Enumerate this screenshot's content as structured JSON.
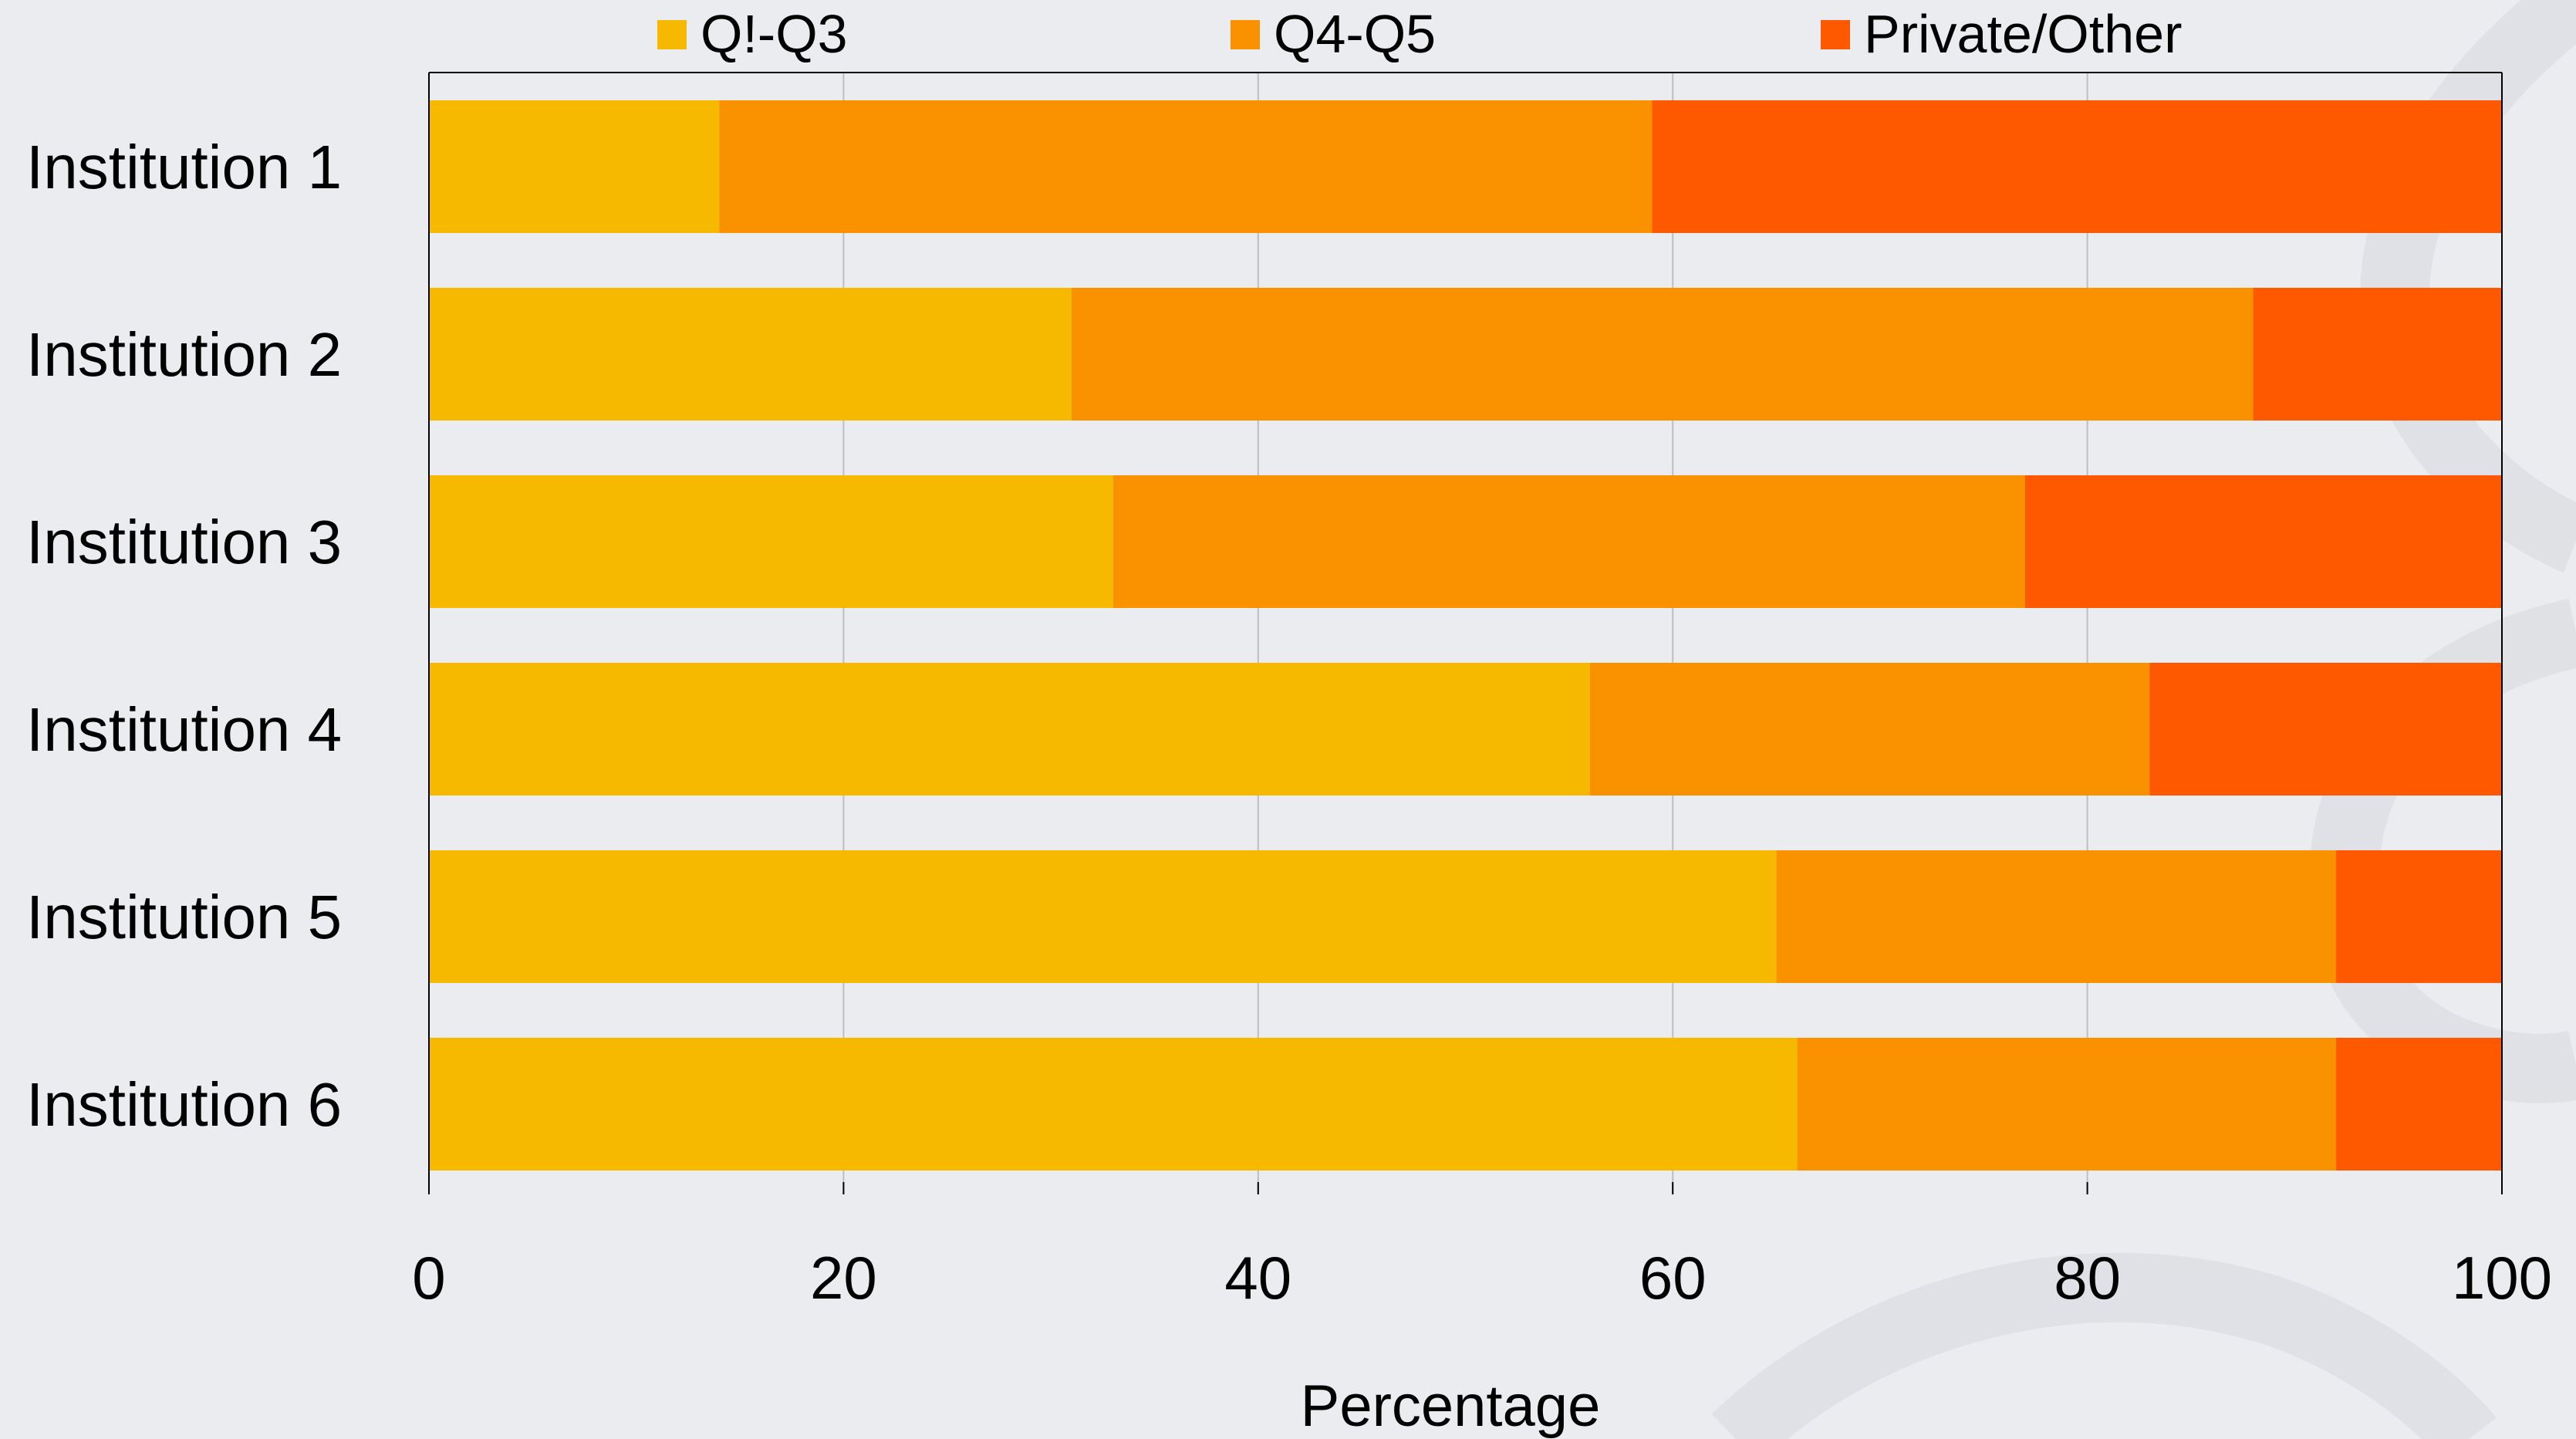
{
  "chart_data": {
    "type": "bar",
    "orientation": "horizontal",
    "stacked": true,
    "categories": [
      "Institution 1",
      "Institution 2",
      "Institution 3",
      "Institution 4",
      "Institution 5",
      "Institution 6"
    ],
    "series": [
      {
        "name": "Q!-Q3",
        "color": "#f6b900",
        "values": [
          14,
          31,
          33,
          56,
          65,
          66
        ]
      },
      {
        "name": "Q4-Q5",
        "color": "#fa9200",
        "values": [
          45,
          57,
          44,
          27,
          27,
          26
        ]
      },
      {
        "name": "Private/Other",
        "color": "#fe5801",
        "values": [
          41,
          12,
          23,
          17,
          8,
          8
        ]
      }
    ],
    "title": "",
    "xlabel": "Percentage",
    "ylabel": "",
    "xlim": [
      0,
      100
    ],
    "xticks": [
      0,
      20,
      40,
      60,
      80,
      100
    ],
    "grid": "vertical",
    "legend_position": "top"
  }
}
